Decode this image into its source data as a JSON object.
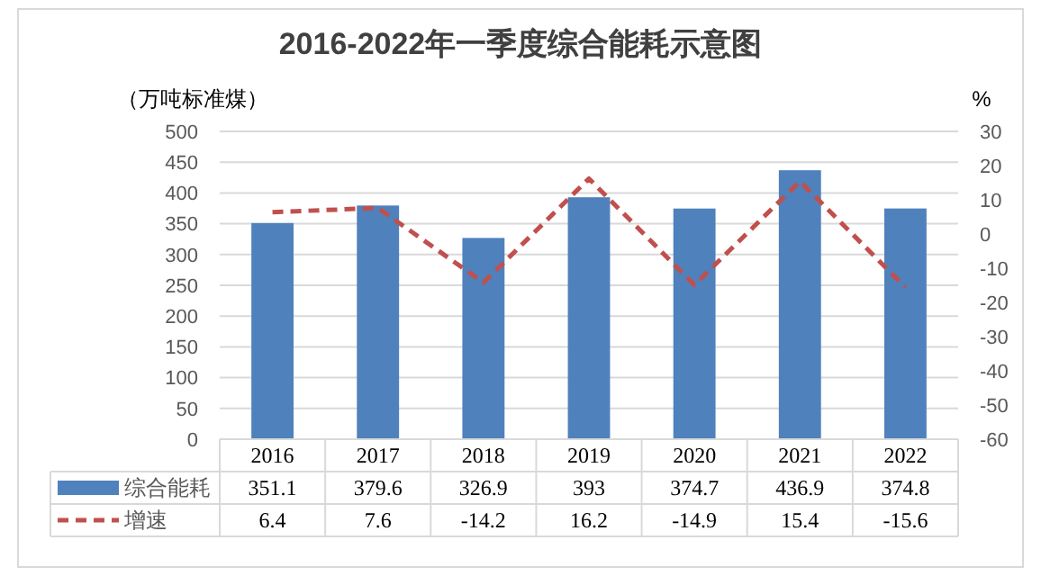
{
  "chart_data": {
    "type": "bar",
    "title": "2016-2022年一季度综合能耗示意图",
    "ylabel": "（万吨标准煤）",
    "y2label": "%",
    "categories": [
      "2016",
      "2017",
      "2018",
      "2019",
      "2020",
      "2021",
      "2022"
    ],
    "series": [
      {
        "name": "综合能耗",
        "color": "#4f81bd",
        "values": [
          351.1,
          379.6,
          326.9,
          393,
          374.7,
          436.9,
          374.8
        ]
      },
      {
        "name": "增速",
        "type": "line",
        "axis": "y2",
        "color": "#c0504d",
        "line_style": "dashed",
        "values": [
          6.4,
          7.6,
          -14.2,
          16.2,
          -14.9,
          15.4,
          -15.6
        ]
      }
    ],
    "ylim": [
      0,
      500
    ],
    "yticks": [
      0,
      50,
      100,
      150,
      200,
      250,
      300,
      350,
      400,
      450,
      500
    ],
    "y2lim": [
      -60,
      30
    ],
    "y2ticks": [
      -60,
      -50,
      -40,
      -30,
      -20,
      -10,
      0,
      10,
      20,
      30
    ],
    "grid": "y",
    "legend": "bottom",
    "data_labels": true
  }
}
